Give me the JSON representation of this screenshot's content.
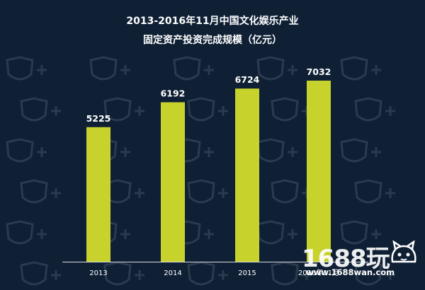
{
  "title_line1": "2013-2016年11月中国文化娱乐产业",
  "title_line2": "固定资产投资完成规模（亿元）",
  "colors": {
    "background": "#0f2035",
    "bar": "#c8d22c",
    "text": "#ffffff",
    "axis": "#d8dde3",
    "pattern": "#2a3a4f"
  },
  "watermark": {
    "brand": "1688玩",
    "url": "www.1688wan.com",
    "icon": "cat-mascot-icon"
  },
  "chart_data": {
    "type": "bar",
    "title": "2013-2016年11月中国文化娱乐产业 固定资产投资完成规模（亿元）",
    "categories": [
      "2013",
      "2014",
      "2015",
      "2016年11月"
    ],
    "values": [
      5225,
      6192,
      6724,
      7032
    ],
    "data_labels": [
      "5225",
      "6192",
      "6724",
      "7032"
    ],
    "xlabel": "",
    "ylabel": "",
    "ylim": [
      0,
      8000
    ],
    "grid": false,
    "legend": "none"
  }
}
